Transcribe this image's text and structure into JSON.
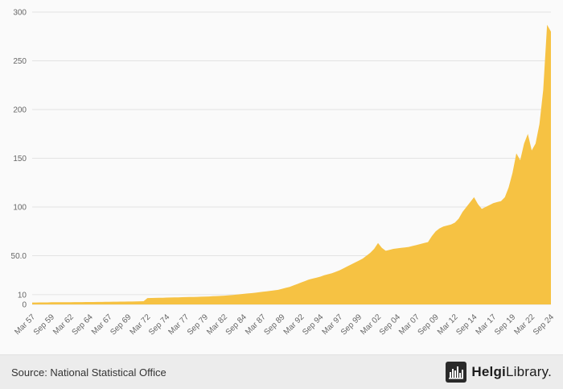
{
  "chart_data": {
    "type": "area",
    "title": "",
    "series_color": "#f6c243",
    "grid_color": "#e3e3e3",
    "label_color": "#666666",
    "ylim": [
      0,
      300
    ],
    "y_ticks": [
      {
        "v": 0,
        "label": "0"
      },
      {
        "v": 10,
        "label": "10"
      },
      {
        "v": 50,
        "label": "50.0"
      },
      {
        "v": 100,
        "label": "100"
      },
      {
        "v": 150,
        "label": "150"
      },
      {
        "v": 200,
        "label": "200"
      },
      {
        "v": 250,
        "label": "250"
      },
      {
        "v": 300,
        "label": "300"
      }
    ],
    "x_tick_labels": [
      "Mar 57",
      "Sep 59",
      "Mar 62",
      "Sep 64",
      "Mar 67",
      "Sep 69",
      "Mar 72",
      "Sep 74",
      "Mar 77",
      "Sep 79",
      "Mar 82",
      "Sep 84",
      "Mar 87",
      "Sep 89",
      "Mar 92",
      "Sep 94",
      "Mar 97",
      "Sep 99",
      "Mar 02",
      "Sep 04",
      "Mar 07",
      "Sep 09",
      "Mar 12",
      "Sep 14",
      "Mar 17",
      "Sep 19",
      "Mar 22",
      "Sep 24"
    ],
    "x_tick_every": 5,
    "frequency": "semiannual",
    "x_start": "Mar 57",
    "x_end": "Sep 24",
    "values": [
      2.0,
      2.0,
      2.1,
      2.1,
      2.1,
      2.2,
      2.2,
      2.2,
      2.3,
      2.3,
      2.3,
      2.4,
      2.4,
      2.4,
      2.5,
      2.5,
      2.5,
      2.6,
      2.6,
      2.7,
      2.7,
      2.8,
      2.8,
      2.9,
      2.9,
      3.0,
      3.0,
      3.1,
      3.2,
      3.3,
      6.5,
      6.6,
      6.7,
      6.8,
      6.9,
      7.0,
      7.1,
      7.2,
      7.3,
      7.4,
      7.5,
      7.6,
      7.7,
      7.8,
      7.9,
      8.0,
      8.2,
      8.4,
      8.6,
      8.8,
      9.0,
      9.3,
      9.6,
      10.0,
      10.4,
      10.8,
      11.2,
      11.6,
      12.0,
      12.5,
      13.0,
      13.5,
      14.0,
      14.5,
      15.0,
      16.0,
      17.0,
      18.0,
      19.5,
      21.0,
      22.5,
      24.0,
      25.5,
      26.5,
      27.5,
      28.5,
      30.0,
      31.0,
      32.0,
      33.5,
      35.0,
      37.0,
      39.0,
      41.0,
      43.0,
      45.0,
      47.0,
      50.0,
      53.0,
      57.0,
      63.0,
      58.0,
      55.0,
      56.0,
      57.0,
      57.5,
      58.0,
      58.5,
      59.0,
      60.0,
      61.0,
      62.0,
      63.0,
      64.0,
      70.0,
      75.0,
      78.0,
      80.0,
      81.0,
      82.0,
      84.0,
      88.0,
      95.0,
      100.0,
      105.0,
      110.0,
      103.0,
      98.0,
      100.0,
      102.0,
      104.0,
      105.0,
      106.0,
      110.0,
      120.0,
      135.0,
      155.0,
      148.0,
      165.0,
      175.0,
      158.0,
      165.0,
      185.0,
      220.0,
      287.0,
      280.0
    ]
  },
  "footer": {
    "source": "Source: National Statistical Office",
    "logo_bold": "Helgi",
    "logo_regular": "Library."
  }
}
